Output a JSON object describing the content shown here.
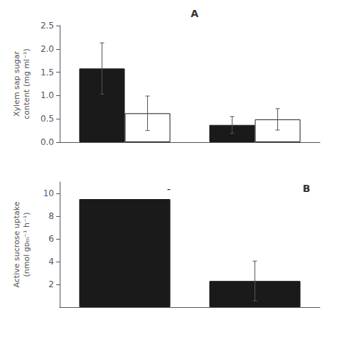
{
  "chart_data": [
    {
      "type": "bar",
      "title": "A",
      "ylabel": "Xylem sap sugar\ncontent (mg ml⁻¹)",
      "categories": [
        null,
        null
      ],
      "series": [
        {
          "color": "#1a1a1a",
          "values": [
            1.58,
            0.37
          ],
          "errors": [
            0.55,
            0.18
          ]
        },
        {
          "color": "#ffffff",
          "values": [
            0.62,
            0.49
          ],
          "errors": [
            0.37,
            0.23
          ]
        }
      ],
      "ylim": [
        0,
        2.5
      ],
      "yticks": [
        {
          "value": 0,
          "label": "0.0"
        },
        0.5,
        {
          "value": 1.0,
          "label": "1.0"
        },
        1.5,
        {
          "value": 2.0,
          "label": "2.0"
        },
        2.5
      ],
      "grid": false,
      "tick_labels": "y"
    },
    {
      "type": "bar",
      "title": "B",
      "ylabel": "Active sucrose uptake\n(nmol gᴅₘ⁻¹ h⁻¹)",
      "annotations": [
        "-"
      ],
      "categories": [
        null,
        null
      ],
      "series": [
        {
          "color": "#1a1a1a",
          "values": [
            9.5,
            2.3
          ],
          "errors": [
            0.0,
            1.75
          ]
        }
      ],
      "ylim": [
        0,
        11
      ],
      "yticks": [
        2,
        4,
        6,
        8,
        10
      ],
      "grid": false,
      "tick_labels": "y"
    }
  ]
}
